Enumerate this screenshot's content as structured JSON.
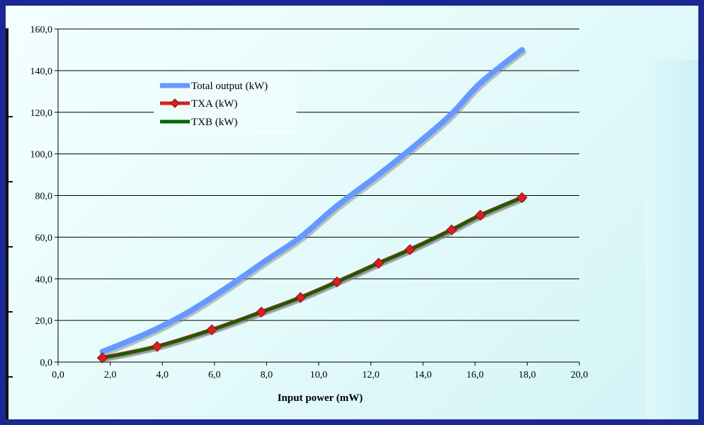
{
  "chart_data": {
    "type": "line",
    "title": "",
    "xlabel": "Input power (mW)",
    "ylabel": "",
    "xlim": [
      0,
      20
    ],
    "ylim": [
      0,
      160
    ],
    "x_ticks": [
      "0,0",
      "2,0",
      "4,0",
      "6,0",
      "8,0",
      "10,0",
      "12,0",
      "14,0",
      "16,0",
      "18,0",
      "20,0"
    ],
    "y_ticks": [
      "0,0",
      "20,0",
      "40,0",
      "60,0",
      "80,0",
      "100,0",
      "120,0",
      "140,0",
      "160,0"
    ],
    "grid": "horizontal",
    "legend_position": "upper-left",
    "series": [
      {
        "name": "Total output (kW)",
        "color": "#6699ff",
        "marker": "none",
        "x": [
          1.7,
          2.5,
          3.7,
          5.0,
          6.5,
          8.0,
          9.3,
          10.7,
          12.3,
          13.5,
          15.0,
          16.2,
          17.8
        ],
        "y": [
          5.0,
          9.0,
          15.5,
          24.0,
          36.0,
          49.0,
          60.0,
          75.0,
          90.0,
          102.0,
          118.0,
          134.0,
          150.0
        ]
      },
      {
        "name": "TXA (kW)",
        "color": "#d82020",
        "marker": "diamond",
        "x": [
          1.7,
          3.8,
          5.9,
          7.8,
          9.3,
          10.7,
          12.3,
          13.5,
          15.1,
          16.2,
          17.8
        ],
        "y": [
          2.0,
          7.5,
          15.5,
          24.0,
          31.0,
          38.5,
          47.5,
          54.0,
          63.5,
          70.5,
          79.0
        ]
      },
      {
        "name": "TXB (kW)",
        "color": "#006600",
        "marker": "none",
        "x": [
          1.7,
          3.8,
          5.9,
          7.8,
          9.3,
          10.7,
          12.3,
          13.5,
          15.1,
          16.2,
          17.8
        ],
        "y": [
          2.0,
          7.5,
          15.5,
          24.0,
          31.0,
          38.5,
          47.5,
          54.0,
          63.5,
          70.5,
          79.0
        ]
      }
    ]
  }
}
